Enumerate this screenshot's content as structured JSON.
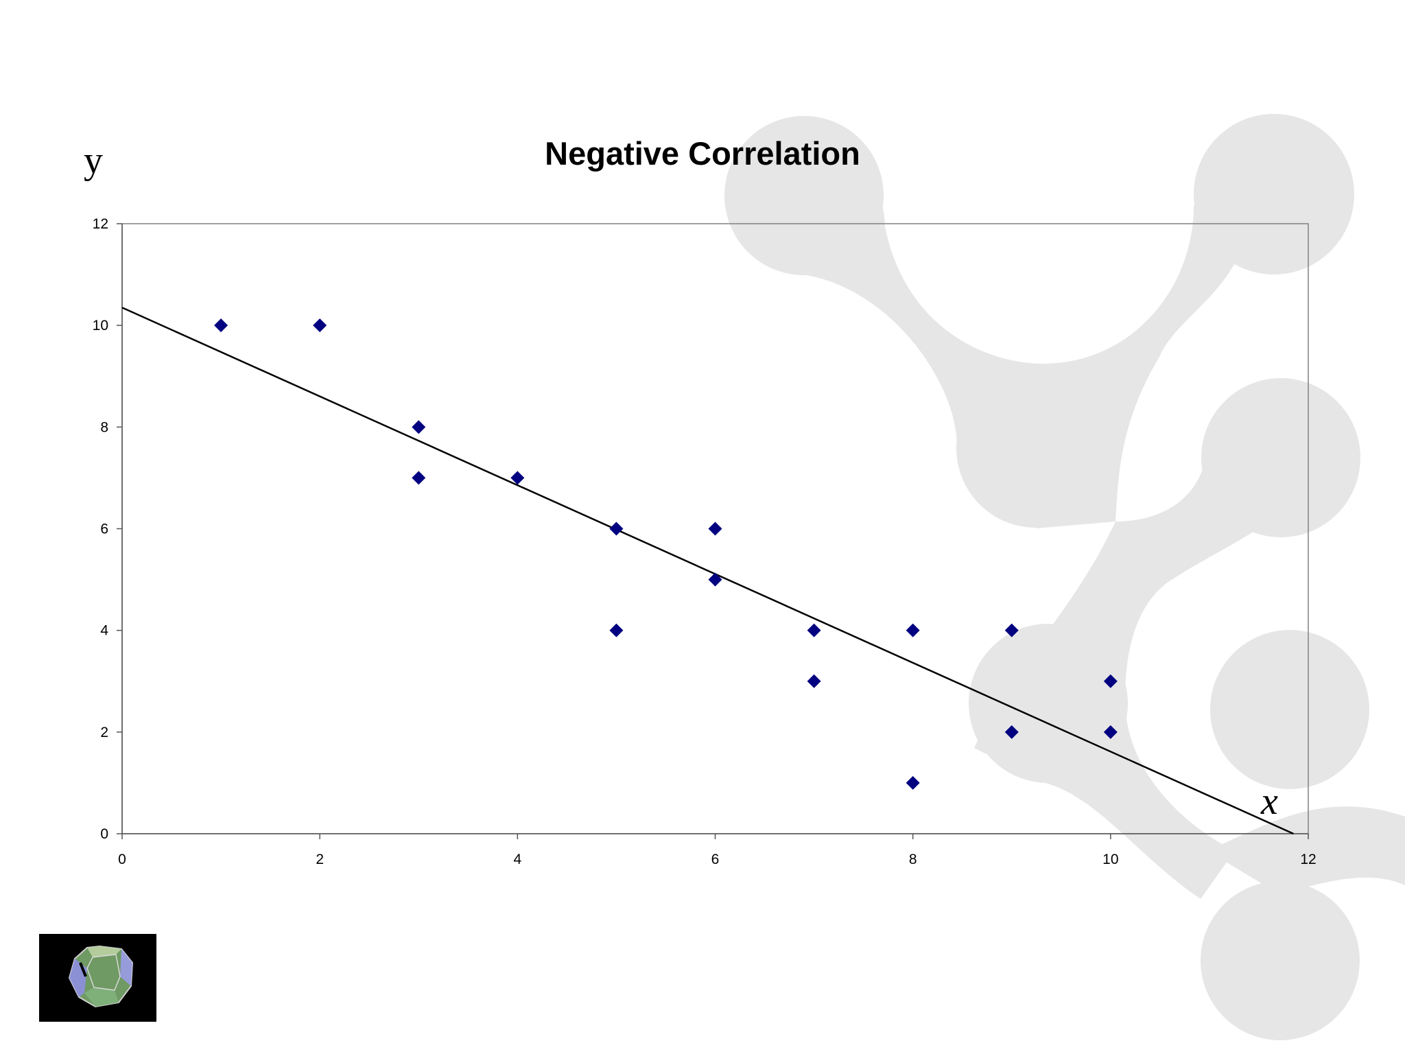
{
  "slide": {
    "y_letter": "y",
    "x_letter": "x",
    "logo_icon": "dodecahedron-logo-icon",
    "decoration_icon": "molecule-watermark-icon",
    "decoration_color": "#e6e6e7"
  },
  "chart_data": {
    "type": "scatter",
    "title": "Negative Correlation",
    "xlabel": "",
    "ylabel": "",
    "xlim": [
      0,
      12
    ],
    "ylim": [
      0,
      12
    ],
    "x_ticks": [
      0,
      2,
      4,
      6,
      8,
      10,
      12
    ],
    "y_ticks": [
      0,
      2,
      4,
      6,
      8,
      10,
      12
    ],
    "grid": false,
    "marker": "diamond",
    "marker_color": "#000080",
    "points": [
      {
        "x": 1,
        "y": 10
      },
      {
        "x": 2,
        "y": 10
      },
      {
        "x": 3,
        "y": 8
      },
      {
        "x": 3,
        "y": 7
      },
      {
        "x": 4,
        "y": 7
      },
      {
        "x": 5,
        "y": 6
      },
      {
        "x": 5,
        "y": 4
      },
      {
        "x": 6,
        "y": 6
      },
      {
        "x": 6,
        "y": 5
      },
      {
        "x": 7,
        "y": 4
      },
      {
        "x": 7,
        "y": 3
      },
      {
        "x": 8,
        "y": 4
      },
      {
        "x": 8,
        "y": 1
      },
      {
        "x": 9,
        "y": 4
      },
      {
        "x": 9,
        "y": 2
      },
      {
        "x": 10,
        "y": 3
      },
      {
        "x": 10,
        "y": 2
      }
    ],
    "trendline": {
      "type": "linear",
      "color": "#000000",
      "from": {
        "x": 0,
        "y": 10.35
      },
      "to": {
        "x": 11.85,
        "y": 0
      }
    }
  }
}
